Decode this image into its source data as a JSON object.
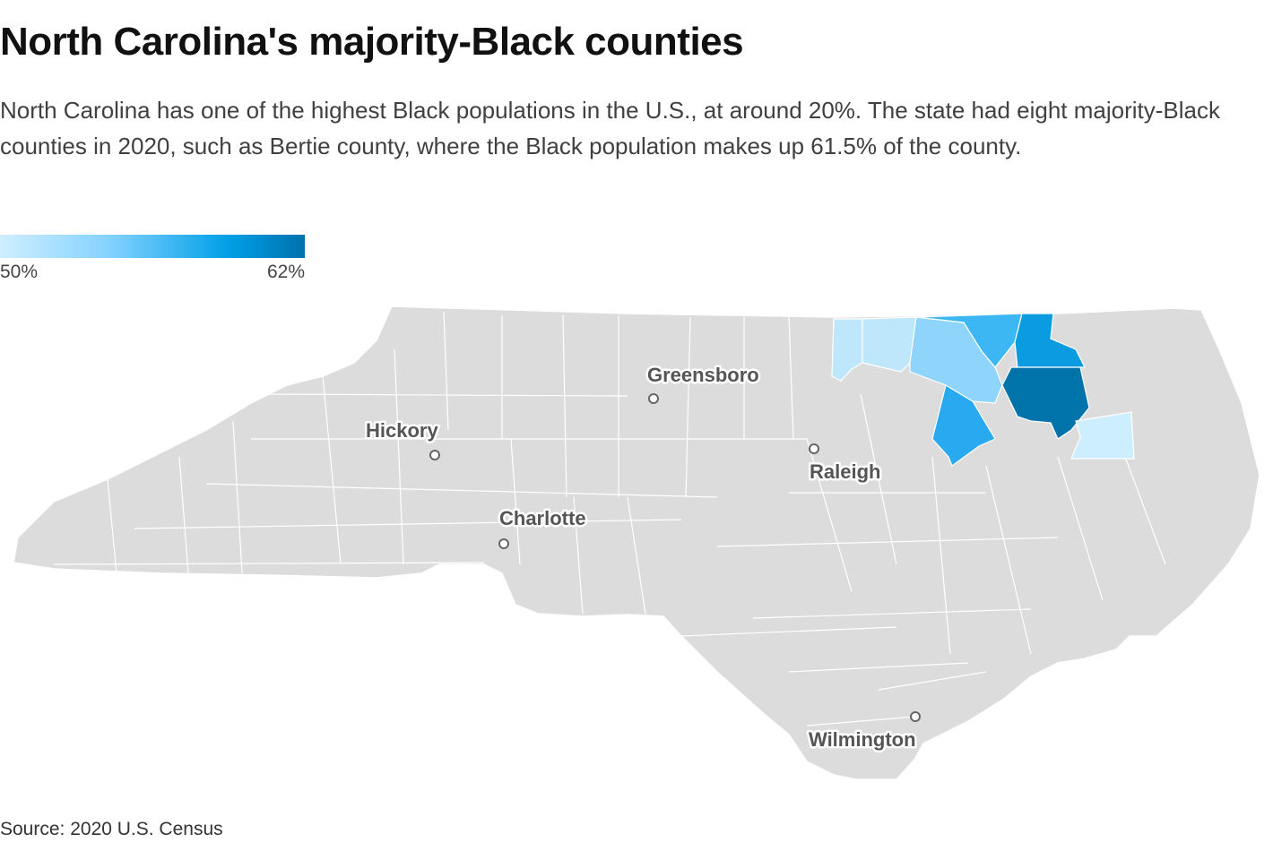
{
  "header": {
    "title": "North Carolina's majority-Black counties",
    "subtitle": "North Carolina has one of the highest Black populations in the U.S., at around 20%. The state had eight majority-Black counties in 2020, such as Bertie county, where the Black population makes up 61.5% of the county."
  },
  "legend": {
    "min_label": "50%",
    "max_label": "62%",
    "min_color": "#cfeeff",
    "max_color": "#0072ad"
  },
  "map": {
    "base_color": "#dcdcdc",
    "border_color": "#ffffff",
    "cities": [
      {
        "name": "Greensboro"
      },
      {
        "name": "Hickory"
      },
      {
        "name": "Raleigh"
      },
      {
        "name": "Charlotte"
      },
      {
        "name": "Wilmington"
      }
    ],
    "highlighted_counties": [
      {
        "color": "#bfe7fc"
      },
      {
        "color": "#bfe7fc"
      },
      {
        "color": "#8fd5fb"
      },
      {
        "color": "#3cb7f4"
      },
      {
        "color": "#0b9be0"
      },
      {
        "color": "#0073ab"
      },
      {
        "color": "#29aaf0"
      },
      {
        "color": "#cdeefe"
      }
    ]
  },
  "footer": {
    "source": "Source: 2020 U.S. Census"
  }
}
